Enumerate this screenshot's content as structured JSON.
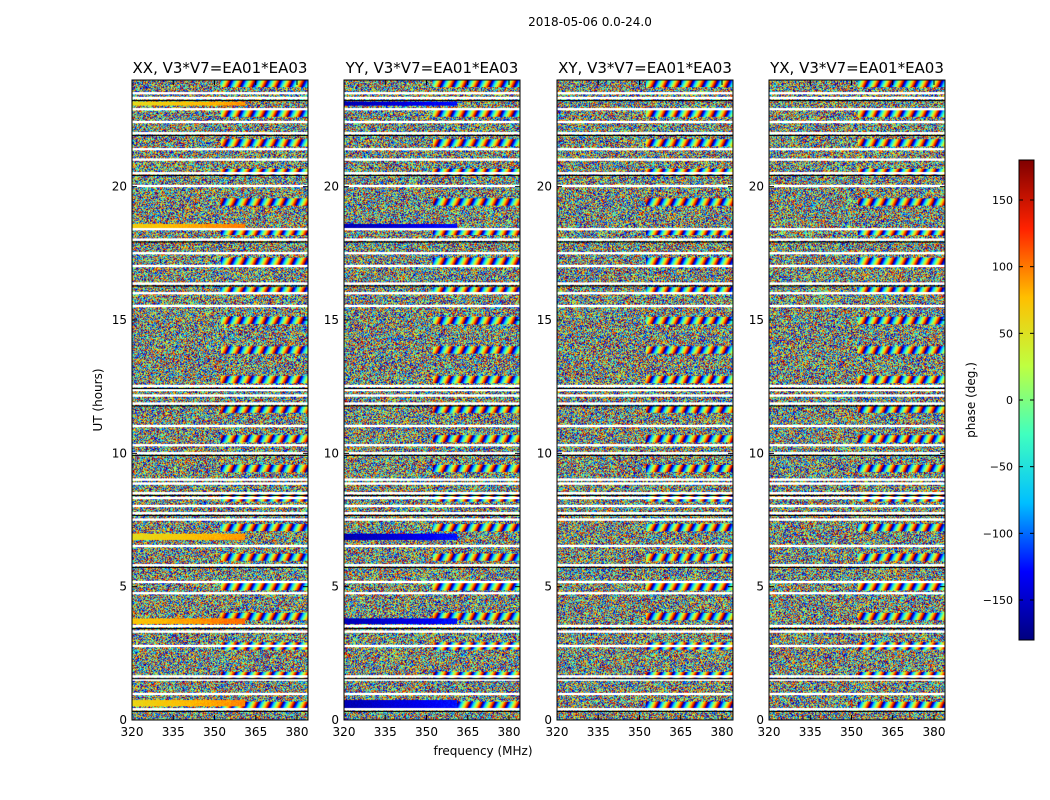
{
  "chart_data": {
    "type": "heatmap",
    "suptitle": "2018-05-06 0.0-24.0",
    "xlabel": "frequency (MHz)",
    "ylabel": "UT (hours)",
    "xlim": [
      320,
      384
    ],
    "xticks": [
      320,
      335,
      350,
      365,
      380
    ],
    "ylim": [
      0,
      24
    ],
    "yticks": [
      0,
      5,
      10,
      15,
      20
    ],
    "colorbar": {
      "label": "phase (deg.)",
      "range": [
        -180,
        180
      ],
      "ticks": [
        150,
        100,
        50,
        0,
        -50,
        -100,
        -150
      ],
      "colormap": [
        "#00007f",
        "#0000ff",
        "#00bfff",
        "#40ffbf",
        "#bfff40",
        "#ffbf00",
        "#ff2200",
        "#7f0000"
      ]
    },
    "flagged_hours": [
      0.4,
      0.95,
      1.5,
      1.62,
      2.75,
      3.3,
      3.5,
      4.75,
      5.15,
      5.8,
      6.5,
      7.5,
      7.75,
      8.0,
      8.3,
      8.5,
      8.85,
      9.0,
      10.0,
      10.3,
      11.0,
      11.85,
      12.15,
      12.35,
      12.5,
      15.5,
      16.0,
      16.35,
      17.0,
      17.5,
      18.0,
      18.4,
      20.0,
      20.5,
      21.0,
      21.4,
      22.0,
      22.4,
      22.9,
      23.3,
      23.5
    ],
    "panels": [
      {
        "title": "XX, V3*V7=EA01*EA03",
        "coherent_bands": [
          [
            0.5,
            0.75,
            60
          ],
          [
            3.6,
            3.8,
            70
          ],
          [
            6.75,
            7.0,
            55
          ],
          [
            18.45,
            18.6,
            65
          ],
          [
            23.05,
            23.2,
            55
          ]
        ]
      },
      {
        "title": "YY, V3*V7=EA01*EA03",
        "coherent_bands": [
          [
            0.45,
            0.75,
            -160
          ],
          [
            3.6,
            3.8,
            -160
          ],
          [
            6.75,
            7.0,
            -160
          ],
          [
            18.45,
            18.6,
            -160
          ],
          [
            23.05,
            23.2,
            -160
          ]
        ]
      },
      {
        "title": "XY, V3*V7=EA01*EA03",
        "coherent_bands": []
      },
      {
        "title": "YX, V3*V7=EA01*EA03",
        "coherent_bands": []
      }
    ]
  }
}
